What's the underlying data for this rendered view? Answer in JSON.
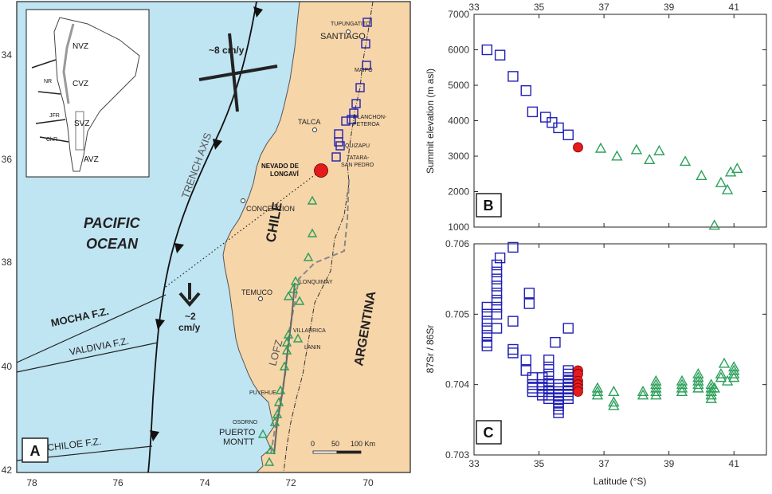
{
  "map": {
    "panel_label": "A",
    "lat_ticks": [
      "34",
      "36",
      "38",
      "40",
      "42"
    ],
    "lon_ticks": [
      "78",
      "76",
      "74",
      "72",
      "70"
    ],
    "ocean_label_1": "PACIFIC",
    "ocean_label_2": "OCEAN",
    "country_chile": "CHILE",
    "country_argentina": "ARGENTINA",
    "trench_label": "TRENCH AXIS",
    "rate_top": "~8 cm/y",
    "rate_bottom_1": "~2",
    "rate_bottom_2": "cm/y",
    "fz_mocha": "MOCHA F.Z.",
    "fz_valdivia": "VALDIVIA F.Z.",
    "fz_chiloe": "CHILOE F.Z.",
    "lofz": "LOFZ",
    "target_label_1": "NEVADO DE",
    "target_label_2": "LONGAVÍ",
    "cities": [
      "SANTIAGO",
      "TALCA",
      "CONCEPCION",
      "TEMUCO",
      "PUERTO",
      "MONTT"
    ],
    "volcanoes": [
      "TUPUNGATITO",
      "MAIPO",
      "PLANCHON-",
      "PETEROA",
      "QUIZAPU",
      "TATARA-",
      "SAN PEDRO",
      "LONQUIMAY",
      "VILLARRICA",
      "LANIN",
      "PUYEHUE",
      "OSORNO"
    ],
    "scale_labels": [
      "0",
      "50",
      "100 Km"
    ],
    "inset_zones": [
      "NVZ",
      "CVZ",
      "SVZ",
      "AVZ",
      "NR",
      "JFR",
      "ChR"
    ]
  },
  "chart_data": [
    {
      "type": "scatter",
      "panel_label": "B",
      "ylabel": "Summit elevation (m asl)",
      "xlim": [
        33,
        42
      ],
      "ylim": [
        1000,
        7000
      ],
      "x_ticks": [
        "33",
        "35",
        "37",
        "39",
        "41"
      ],
      "y_ticks": [
        "1000",
        "2000",
        "3000",
        "4000",
        "5000",
        "6000",
        "7000"
      ],
      "series": [
        {
          "marker": "square",
          "color": "#1f1fb4",
          "points": [
            [
              33.4,
              6000
            ],
            [
              33.8,
              5850
            ],
            [
              34.2,
              5250
            ],
            [
              34.6,
              4850
            ],
            [
              34.8,
              4250
            ],
            [
              35.2,
              4100
            ],
            [
              35.4,
              3950
            ],
            [
              35.6,
              3800
            ],
            [
              35.9,
              3600
            ]
          ]
        },
        {
          "marker": "circle",
          "color": "#e41a1c",
          "points": [
            [
              36.2,
              3250
            ]
          ]
        },
        {
          "marker": "triangle",
          "color": "#2ca05a",
          "points": [
            [
              36.9,
              3220
            ],
            [
              37.4,
              3000
            ],
            [
              38.0,
              3180
            ],
            [
              38.4,
              2900
            ],
            [
              38.7,
              3150
            ],
            [
              39.5,
              2850
            ],
            [
              40.0,
              2450
            ],
            [
              40.4,
              1050
            ],
            [
              40.6,
              2250
            ],
            [
              40.8,
              2050
            ],
            [
              40.9,
              2550
            ],
            [
              41.1,
              2650
            ]
          ]
        }
      ]
    },
    {
      "type": "scatter",
      "panel_label": "C",
      "ylabel": "87Sr / 86Sr",
      "xlabel": "Latitude (°S)",
      "xlim": [
        33,
        42
      ],
      "ylim": [
        0.703,
        0.706
      ],
      "x_ticks": [
        "33",
        "35",
        "37",
        "39",
        "41"
      ],
      "y_ticks": [
        "0.703",
        "0.704",
        "0.705",
        "0.706"
      ],
      "series": [
        {
          "marker": "square",
          "color": "#1f1fb4",
          "points": [
            [
              33.4,
              0.7051
            ],
            [
              33.4,
              0.705
            ],
            [
              33.4,
              0.7049
            ],
            [
              33.4,
              0.7048
            ],
            [
              33.4,
              0.7047
            ],
            [
              33.4,
              0.7046
            ],
            [
              33.4,
              0.70455
            ],
            [
              33.7,
              0.7057
            ],
            [
              33.7,
              0.7056
            ],
            [
              33.7,
              0.7055
            ],
            [
              33.7,
              0.7054
            ],
            [
              33.7,
              0.7053
            ],
            [
              33.7,
              0.7052
            ],
            [
              33.7,
              0.7051
            ],
            [
              33.7,
              0.705
            ],
            [
              33.7,
              0.7048
            ],
            [
              33.8,
              0.7058
            ],
            [
              34.2,
              0.70595
            ],
            [
              34.2,
              0.7049
            ],
            [
              34.2,
              0.7045
            ],
            [
              34.2,
              0.70445
            ],
            [
              34.6,
              0.70435
            ],
            [
              34.6,
              0.7042
            ],
            [
              34.7,
              0.7053
            ],
            [
              34.7,
              0.70515
            ],
            [
              34.8,
              0.7041
            ],
            [
              34.8,
              0.704
            ],
            [
              34.8,
              0.70395
            ],
            [
              34.8,
              0.7039
            ],
            [
              35.1,
              0.7041
            ],
            [
              35.1,
              0.704
            ],
            [
              35.1,
              0.70395
            ],
            [
              35.1,
              0.7039
            ],
            [
              35.1,
              0.70385
            ],
            [
              35.3,
              0.70435
            ],
            [
              35.3,
              0.70425
            ],
            [
              35.3,
              0.70415
            ],
            [
              35.3,
              0.70405
            ],
            [
              35.3,
              0.704
            ],
            [
              35.3,
              0.70395
            ],
            [
              35.3,
              0.7039
            ],
            [
              35.3,
              0.70385
            ],
            [
              35.3,
              0.7038
            ],
            [
              35.5,
              0.7046
            ],
            [
              35.6,
              0.704
            ],
            [
              35.6,
              0.70395
            ],
            [
              35.6,
              0.7039
            ],
            [
              35.6,
              0.70385
            ],
            [
              35.6,
              0.7038
            ],
            [
              35.6,
              0.70375
            ],
            [
              35.6,
              0.7037
            ],
            [
              35.6,
              0.70365
            ],
            [
              35.6,
              0.7036
            ],
            [
              35.9,
              0.7048
            ],
            [
              35.9,
              0.7042
            ],
            [
              35.9,
              0.70415
            ],
            [
              35.9,
              0.7041
            ],
            [
              35.9,
              0.70405
            ],
            [
              35.9,
              0.704
            ],
            [
              35.9,
              0.70395
            ],
            [
              35.9,
              0.7039
            ],
            [
              35.9,
              0.70385
            ],
            [
              35.9,
              0.7038
            ]
          ]
        },
        {
          "marker": "circle",
          "color": "#e41a1c",
          "points": [
            [
              36.2,
              0.7042
            ],
            [
              36.2,
              0.70415
            ],
            [
              36.2,
              0.70405
            ],
            [
              36.2,
              0.704
            ],
            [
              36.2,
              0.70395
            ],
            [
              36.2,
              0.7039
            ]
          ]
        },
        {
          "marker": "triangle",
          "color": "#2ca05a",
          "points": [
            [
              36.8,
              0.70395
            ],
            [
              36.8,
              0.7039
            ],
            [
              36.8,
              0.70385
            ],
            [
              37.3,
              0.7039
            ],
            [
              37.3,
              0.70375
            ],
            [
              37.3,
              0.7037
            ],
            [
              38.2,
              0.70385
            ],
            [
              38.2,
              0.7039
            ],
            [
              38.6,
              0.70405
            ],
            [
              38.6,
              0.704
            ],
            [
              38.6,
              0.70395
            ],
            [
              38.6,
              0.7039
            ],
            [
              38.6,
              0.70385
            ],
            [
              39.4,
              0.704
            ],
            [
              39.4,
              0.70395
            ],
            [
              39.4,
              0.7039
            ],
            [
              39.4,
              0.70405
            ],
            [
              39.9,
              0.70415
            ],
            [
              39.9,
              0.7041
            ],
            [
              39.9,
              0.70405
            ],
            [
              39.9,
              0.704
            ],
            [
              39.9,
              0.70395
            ],
            [
              40.3,
              0.704
            ],
            [
              40.3,
              0.70395
            ],
            [
              40.3,
              0.7039
            ],
            [
              40.3,
              0.70385
            ],
            [
              40.3,
              0.7038
            ],
            [
              40.6,
              0.70415
            ],
            [
              40.6,
              0.7041
            ],
            [
              40.7,
              0.7043
            ],
            [
              40.8,
              0.70405
            ],
            [
              41.0,
              0.70425
            ],
            [
              41.0,
              0.7042
            ],
            [
              41.0,
              0.70415
            ],
            [
              41.0,
              0.7041
            ],
            [
              40.4,
              0.70395
            ]
          ]
        }
      ]
    }
  ]
}
